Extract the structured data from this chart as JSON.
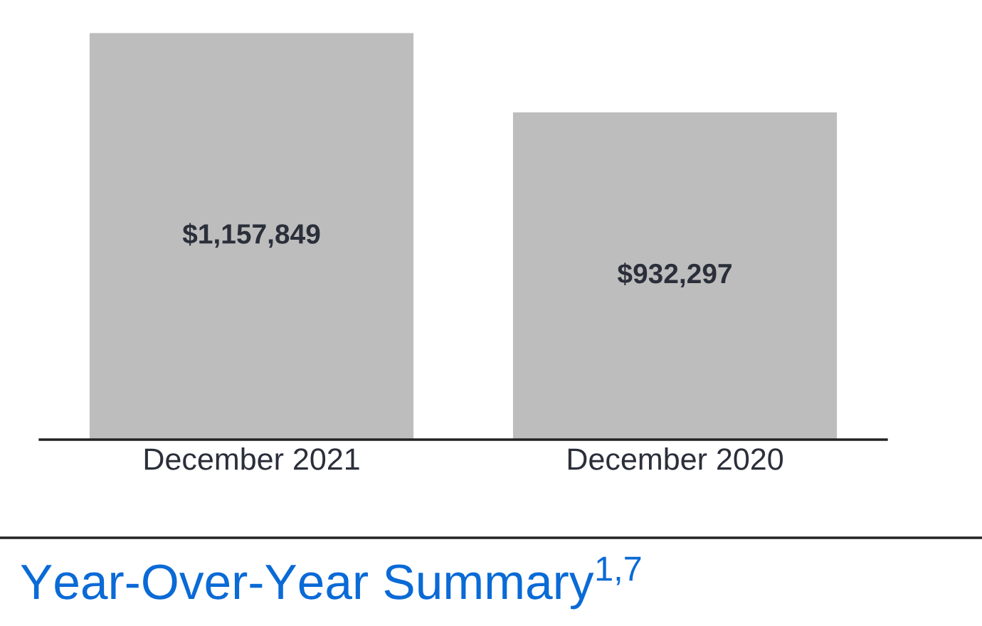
{
  "chart_data": {
    "type": "bar",
    "title": "Year-Over-Year Summary$^{1,7}$",
    "categories": [
      "December 2021",
      "December 2020"
    ],
    "values": [
      1157849,
      932297
    ],
    "color": "#bcbdbc",
    "value_labels": [
      "$1,157,849",
      "$932,297"
    ]
  }
}
